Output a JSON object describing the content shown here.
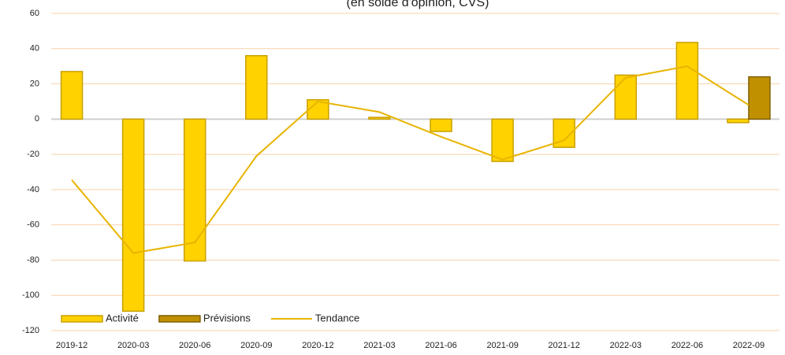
{
  "chart_data": {
    "type": "bar",
    "subtitle": "(en solde d'opinion, CVS)",
    "categories": [
      "2019-12",
      "2020-03",
      "2020-06",
      "2020-09",
      "2020-12",
      "2021-03",
      "2021-06",
      "2021-09",
      "2021-12",
      "2022-03",
      "2022-06",
      "2022-09"
    ],
    "series": [
      {
        "name": "Activité",
        "type": "bar",
        "color": "#ffd200",
        "values": [
          27,
          -109,
          -80.5,
          36,
          11,
          1,
          -7,
          -24,
          -16,
          25,
          43.5,
          -2
        ]
      },
      {
        "name": "Prévisions",
        "type": "bar",
        "color": "#c09000",
        "values": [
          null,
          null,
          null,
          null,
          null,
          null,
          null,
          null,
          null,
          null,
          null,
          24
        ]
      },
      {
        "name": "Tendance",
        "type": "line",
        "color": "#e8b400",
        "values": [
          -34.5,
          -76,
          -70,
          -21,
          10,
          4,
          -10,
          -23,
          -12,
          23.5,
          30,
          8
        ]
      }
    ],
    "ylim": [
      -120,
      60
    ],
    "yticks": [
      -120,
      -100,
      -80,
      -60,
      -40,
      -20,
      0,
      20,
      40,
      60
    ],
    "grid": true,
    "legend": "bottom-left"
  }
}
